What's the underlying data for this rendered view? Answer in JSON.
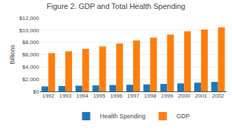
{
  "chart_data": {
    "type": "bar",
    "title": "Figure 2. GDP and Total Health Spending",
    "ylabel": "Billions",
    "categories": [
      "1992",
      "1993",
      "1994",
      "1995",
      "1996",
      "1997",
      "1998",
      "1999",
      "2000",
      "2001",
      "2002"
    ],
    "series": [
      {
        "name": "Health Spending",
        "values": [
          820,
          888,
          937,
          993,
          1042,
          1092,
          1150,
          1222,
          1310,
          1424,
          1553
        ]
      },
      {
        "name": "GDP",
        "values": [
          6244,
          6558,
          6948,
          7342,
          7813,
          8318,
          8782,
          9274,
          9825,
          10082,
          10446
        ]
      }
    ],
    "ylim": [
      0,
      12000
    ],
    "yticks": [
      {
        "value": 0,
        "label": "$0"
      },
      {
        "value": 2000,
        "label": "$2,000"
      },
      {
        "value": 4000,
        "label": "$4,000"
      },
      {
        "value": 6000,
        "label": "$6,000"
      },
      {
        "value": 8000,
        "label": "$8,000"
      },
      {
        "value": 10000,
        "label": "$10,000"
      },
      {
        "value": 12000,
        "label": "$12,000"
      }
    ],
    "grid": true,
    "legend": "bottom"
  }
}
